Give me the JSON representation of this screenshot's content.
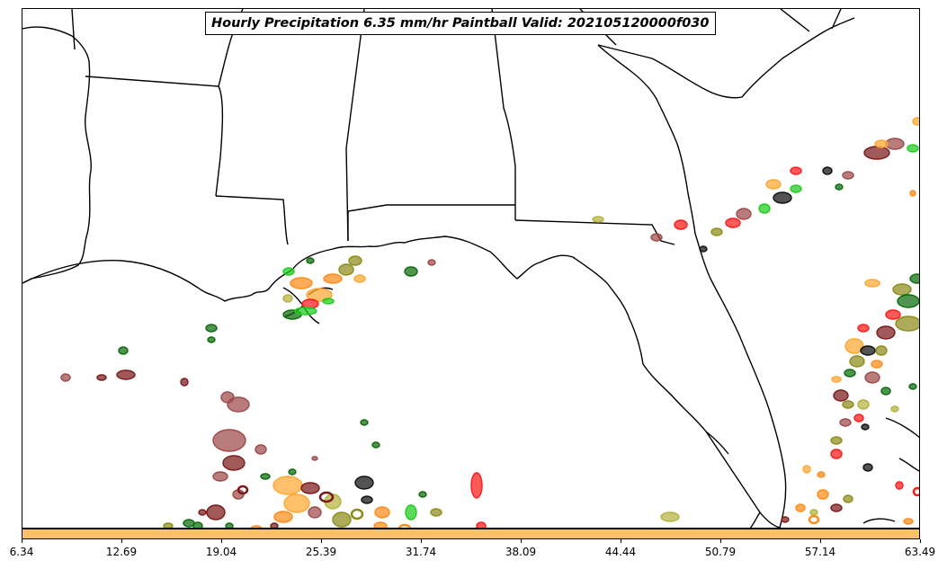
{
  "map": {
    "title": "Hourly Precipitation 6.35 mm/hr Paintball Valid: 202105120000f030",
    "land_color": "#ffffff",
    "coast_color": "#000000",
    "member_colors": [
      "#7b1a1a",
      "#9e4a4a",
      "#ff8c1a",
      "#ffa733",
      "#ff1a1a",
      "#1fcc1f",
      "#0b6b0b",
      "#8c8c1a",
      "#b3b340",
      "#111111"
    ]
  },
  "colorbar": {
    "fill_color": "#ffc069",
    "tick_labels": [
      "6.34",
      "12.69",
      "19.04",
      "25.39",
      "31.74",
      "38.09",
      "44.44",
      "50.79",
      "57.14",
      "63.49"
    ]
  }
}
